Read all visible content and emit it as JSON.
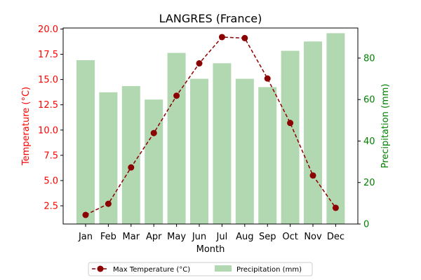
{
  "chart_data": {
    "type": "bar+line",
    "title": "LANGRES (France)",
    "xlabel": "Month",
    "ylabel_left": "Temperature (°C)",
    "ylabel_right": "Precipitation (mm)",
    "categories": [
      "Jan",
      "Feb",
      "Mar",
      "Apr",
      "May",
      "Jun",
      "Jul",
      "Aug",
      "Sep",
      "Oct",
      "Nov",
      "Dec"
    ],
    "series": [
      {
        "name": "Max Temperature (°C)",
        "kind": "line",
        "axis": "left",
        "color": "#8b0000",
        "linestyle": "dashed",
        "marker": "circle",
        "values": [
          1.6,
          2.7,
          6.3,
          9.7,
          13.4,
          16.6,
          19.2,
          19.1,
          15.1,
          10.7,
          5.5,
          2.3
        ]
      },
      {
        "name": "Precipitation (mm)",
        "kind": "bar",
        "axis": "right",
        "color": "#b2d8b2",
        "values": [
          79,
          63.5,
          66.5,
          60,
          82.5,
          70,
          77.5,
          70,
          66,
          83.5,
          88,
          92
        ]
      }
    ],
    "ylim_left": [
      0.7,
      20.1
    ],
    "yticks_left": [
      "2.5",
      "5.0",
      "7.5",
      "10.0",
      "12.5",
      "15.0",
      "17.5",
      "20.0"
    ],
    "ylim_right": [
      0,
      94.5
    ],
    "yticks_right": [
      "0",
      "20",
      "40",
      "60",
      "80"
    ],
    "left_axis_color": "#ff0000",
    "right_axis_color": "#008000",
    "grid": false,
    "legend": "bottom-center"
  }
}
